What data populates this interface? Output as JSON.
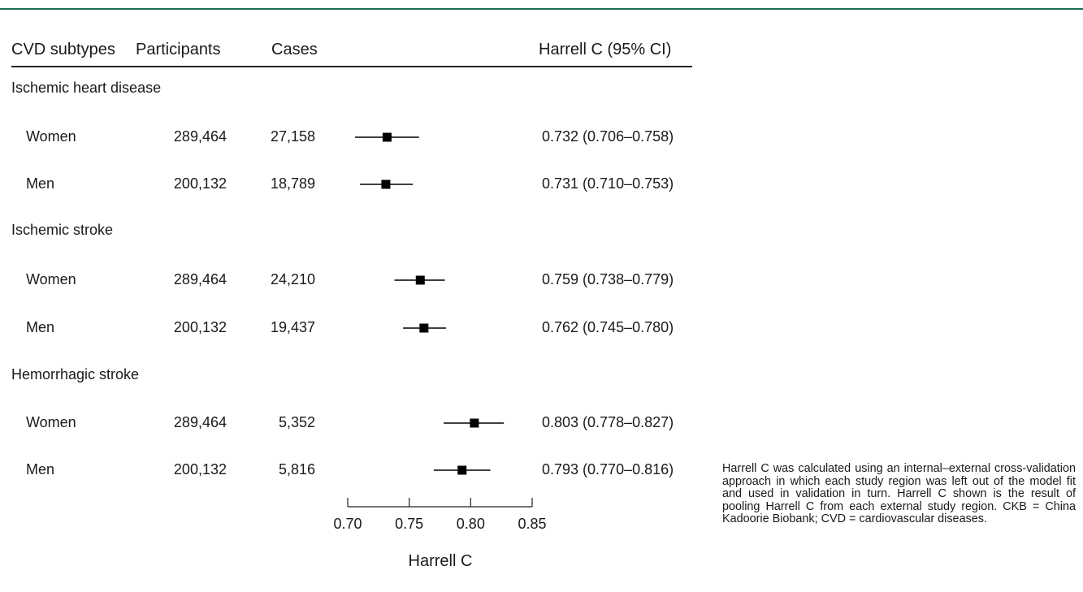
{
  "colors": {
    "accent_rule": "#1f6b57",
    "marker": "#000000"
  },
  "headers": {
    "subtypes": "CVD subtypes",
    "participants": "Participants",
    "cases": "Cases",
    "harrell": "Harrell C (95% CI)"
  },
  "groups": [
    {
      "label": "Ischemic heart disease",
      "rows": [
        {
          "sex": "Women",
          "participants": "289,464",
          "cases": "27,158",
          "ci_text": "0.732 (0.706–0.758)"
        },
        {
          "sex": "Men",
          "participants": "200,132",
          "cases": "18,789",
          "ci_text": "0.731 (0.710–0.753)"
        }
      ]
    },
    {
      "label": "Ischemic stroke",
      "rows": [
        {
          "sex": "Women",
          "participants": "289,464",
          "cases": "24,210",
          "ci_text": "0.759 (0.738–0.779)"
        },
        {
          "sex": "Men",
          "participants": "200,132",
          "cases": "19,437",
          "ci_text": "0.762 (0.745–0.780)"
        }
      ]
    },
    {
      "label": "Hemorrhagic stroke",
      "rows": [
        {
          "sex": "Women",
          "participants": "289,464",
          "cases": "5,352",
          "ci_text": "0.803 (0.778–0.827)"
        },
        {
          "sex": "Men",
          "participants": "200,132",
          "cases": "5,816",
          "ci_text": "0.793 (0.770–0.816)"
        }
      ]
    }
  ],
  "chart_data": {
    "type": "forest",
    "xlabel": "Harrell C",
    "xlim": [
      0.7,
      0.85
    ],
    "ticks": [
      "0.70",
      "0.75",
      "0.80",
      "0.85"
    ],
    "points": [
      {
        "group": "Ischemic heart disease",
        "sex": "Women",
        "estimate": 0.732,
        "lower": 0.706,
        "upper": 0.758
      },
      {
        "group": "Ischemic heart disease",
        "sex": "Men",
        "estimate": 0.731,
        "lower": 0.71,
        "upper": 0.753
      },
      {
        "group": "Ischemic stroke",
        "sex": "Women",
        "estimate": 0.759,
        "lower": 0.738,
        "upper": 0.779
      },
      {
        "group": "Ischemic stroke",
        "sex": "Men",
        "estimate": 0.762,
        "lower": 0.745,
        "upper": 0.78
      },
      {
        "group": "Hemorrhagic stroke",
        "sex": "Women",
        "estimate": 0.803,
        "lower": 0.778,
        "upper": 0.827
      },
      {
        "group": "Hemorrhagic stroke",
        "sex": "Men",
        "estimate": 0.793,
        "lower": 0.77,
        "upper": 0.816
      }
    ]
  },
  "footnote": "Harrell C was calculated using an internal–external cross-validation approach in which each study re­gion was left out of the model fit and used in vali­dation in turn. Harrell C shown is the result of pooling Harrell C from each external study region. CKB = China Kadoorie Biobank; CVD = cardiovas­cular diseases."
}
